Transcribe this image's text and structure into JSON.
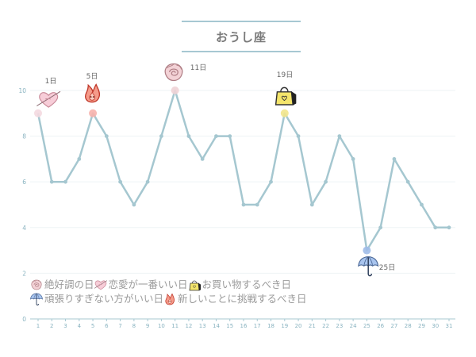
{
  "chart_data": {
    "type": "line",
    "title": "おうし座",
    "x": [
      1,
      2,
      3,
      4,
      5,
      6,
      7,
      8,
      9,
      10,
      11,
      12,
      13,
      14,
      15,
      16,
      17,
      18,
      19,
      20,
      21,
      22,
      23,
      24,
      25,
      26,
      27,
      28,
      29,
      30,
      31
    ],
    "y": [
      9,
      6,
      6,
      7,
      9,
      8,
      6,
      5,
      6,
      8,
      10,
      8,
      7,
      8,
      8,
      5,
      5,
      6,
      9,
      8,
      5,
      6,
      8,
      7,
      3,
      4,
      7,
      6,
      5,
      4,
      4
    ],
    "ylim": [
      0,
      11
    ],
    "yticks": [
      0,
      2,
      4,
      6,
      8,
      10
    ],
    "grid": true,
    "annotations": [
      {
        "day": 1,
        "label": "1日",
        "icon": "heart-love-icon",
        "color": "#f4d9e0"
      },
      {
        "day": 5,
        "label": "5日",
        "icon": "fire-flame-icon",
        "color": "#f7b3ad"
      },
      {
        "day": 11,
        "label": "11日",
        "icon": "flower-rose-icon",
        "color": "#f0d3d6"
      },
      {
        "day": 19,
        "label": "19日",
        "icon": "shopping-bag-icon",
        "color": "#f2e68c"
      },
      {
        "day": 25,
        "label": "25日",
        "icon": "umbrella-icon",
        "color": "#9fbbe8"
      }
    ]
  },
  "legend": {
    "row1": [
      {
        "icon": "flower-rose-icon",
        "text": "絶好調の日"
      },
      {
        "icon": "heart-love-icon",
        "text": "恋愛が一番いい日"
      },
      {
        "icon": "shopping-bag-icon",
        "text": "お買い物するべき日"
      }
    ],
    "row2": [
      {
        "icon": "umbrella-icon",
        "text": "頑張りすぎない方がいい日"
      },
      {
        "icon": "fire-flame-icon",
        "text": "新しいことに挑戦するべき日"
      }
    ]
  },
  "colors": {
    "line": "#a5c7d0",
    "axis": "#a7c8d2",
    "tick_text": "#89b3c0",
    "grid": "#eef3f5"
  }
}
